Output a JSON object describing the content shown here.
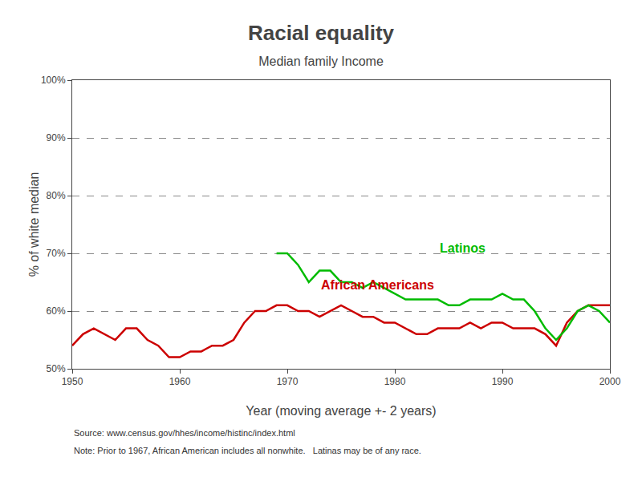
{
  "chart_data": {
    "type": "line",
    "title": "Racial equality",
    "subtitle": "Median family Income",
    "x_label": "Year (moving average +- 2 years)",
    "y_label": "% of white median",
    "notes": [
      "Source: www.census.gov/hhes/income/histinc/index.html",
      "Note: Prior to 1967, African American includes all nonwhite.   Latinas may be of any race."
    ],
    "xlim": [
      1950,
      2000
    ],
    "xticks": [
      1950,
      1960,
      1970,
      1980,
      1990,
      2000
    ],
    "ylim": [
      50,
      100
    ],
    "yticks": [
      {
        "value": 50,
        "label": "50%"
      },
      {
        "value": 60,
        "label": "60%"
      },
      {
        "value": 70,
        "label": "70%"
      },
      {
        "value": 80,
        "label": "80%"
      },
      {
        "value": 90,
        "label": "90%"
      },
      {
        "value": 100,
        "label": "100%"
      }
    ],
    "grid": true,
    "series": [
      {
        "color": "#cc0000",
        "x": [
          1950,
          1951,
          1952,
          1953,
          1954,
          1955,
          1956,
          1957,
          1958,
          1959,
          1960,
          1961,
          1962,
          1963,
          1964,
          1965,
          1966,
          1967,
          1968,
          1969,
          1970,
          1971,
          1972,
          1973,
          1974,
          1975,
          1976,
          1977,
          1978,
          1979,
          1980,
          1981,
          1982,
          1983,
          1984,
          1985,
          1986,
          1987,
          1988,
          1989,
          1990,
          1991,
          1992,
          1993,
          1994,
          1995,
          1996,
          1997,
          1998,
          1999,
          2000
        ],
        "values": [
          54,
          56,
          57,
          56,
          55,
          57,
          57,
          55,
          54,
          52,
          52,
          53,
          53,
          54,
          54,
          55,
          58,
          60,
          60,
          61,
          61,
          60,
          60,
          59,
          60,
          61,
          60,
          59,
          59,
          58,
          58,
          57,
          56,
          56,
          57,
          57,
          57,
          58,
          57,
          58,
          58,
          57,
          57,
          57,
          56,
          54,
          58,
          60,
          61,
          61,
          61
        ]
      },
      {
        "color": "#00bb00",
        "x": [
          1969,
          1970,
          1971,
          1972,
          1973,
          1974,
          1975,
          1976,
          1977,
          1978,
          1979,
          1980,
          1981,
          1982,
          1983,
          1984,
          1985,
          1986,
          1987,
          1988,
          1989,
          1990,
          1991,
          1992,
          1993,
          1994,
          1995,
          1996,
          1997,
          1998,
          1999,
          2000
        ],
        "values": [
          70,
          70,
          68,
          65,
          67,
          67,
          65,
          65,
          64,
          65,
          64,
          63,
          62,
          62,
          62,
          62,
          61,
          61,
          62,
          62,
          62,
          63,
          62,
          62,
          60,
          57,
          55,
          57,
          60,
          61,
          60,
          58
        ]
      }
    ],
    "annotations": [
      {
        "text": "African Americans",
        "x": 1973,
        "y": 63.0,
        "color": "#cc0000"
      },
      {
        "text": "Latinos",
        "x": 1984,
        "y": 69.5,
        "color": "#00bb00"
      }
    ]
  }
}
